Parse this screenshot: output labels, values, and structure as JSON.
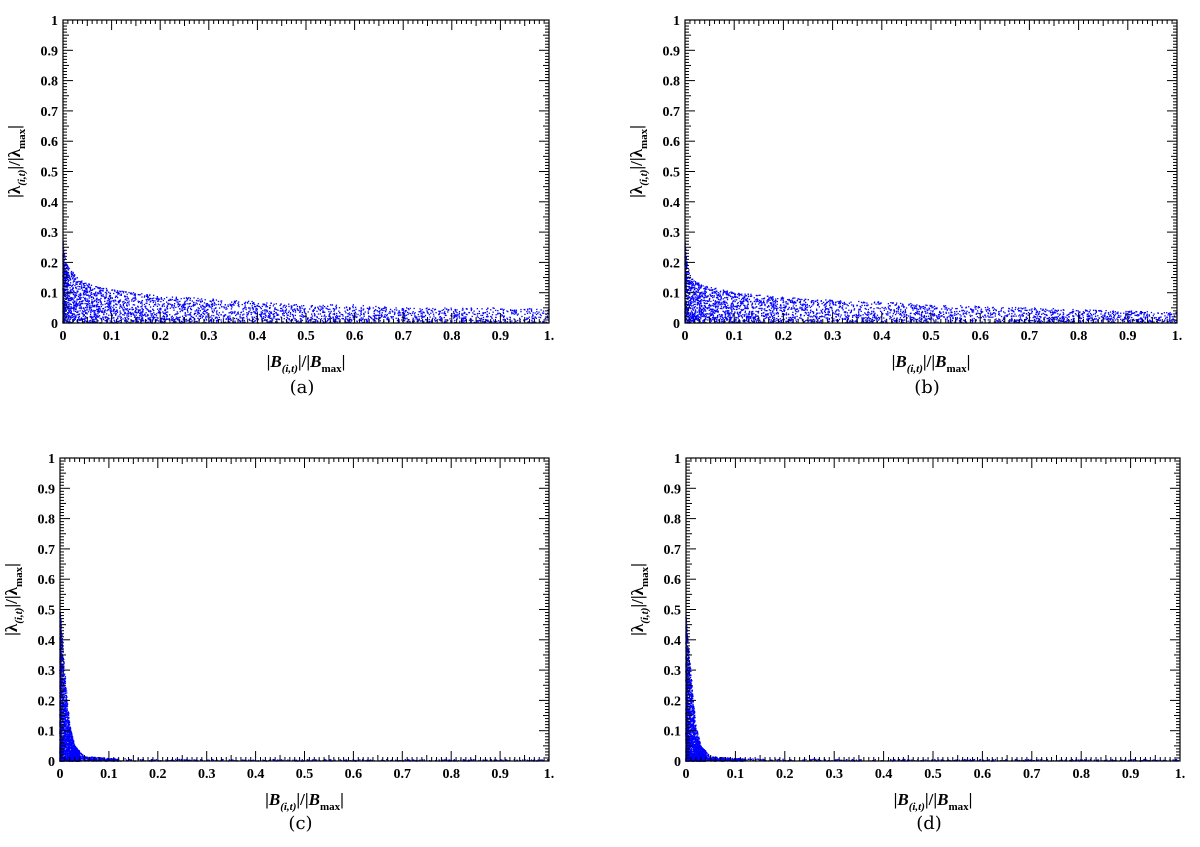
{
  "panel_captions": [
    "(a)",
    "(b)",
    "(c)",
    "(d)"
  ],
  "axis_text": {
    "x_label": "|B(i,t)|/|Bmax|",
    "y_label": "|λ(i,t)|/|λmax|"
  },
  "colors": {
    "points": "#0000ff",
    "axes": "#000000",
    "background": "#ffffff"
  },
  "chart_data": [
    {
      "type": "scatter",
      "caption": "(a)",
      "xlabel": "|B(i,t)|/|Bmax|",
      "ylabel": "|λ(i,t)|/|λmax|",
      "xlim": [
        0,
        1
      ],
      "ylim": [
        0,
        1
      ],
      "xticks": [
        "0",
        "0.1",
        "0.2",
        "0.3",
        "0.4",
        "0.5",
        "0.6",
        "0.7",
        "0.8",
        "0.9",
        "1."
      ],
      "yticks": [
        "0",
        "0.1",
        "0.2",
        "0.3",
        "0.4",
        "0.5",
        "0.6",
        "0.7",
        "0.8",
        "0.9",
        "1"
      ],
      "grid": false,
      "series": [
        {
          "color": "#0000ff",
          "envelope_x": [
            0.0,
            0.005,
            0.01,
            0.02,
            0.03,
            0.05,
            0.1,
            0.2,
            0.3,
            0.4,
            0.5,
            0.6,
            0.7,
            0.8,
            0.9,
            1.0
          ],
          "envelope_y_max": [
            0.27,
            0.21,
            0.19,
            0.17,
            0.15,
            0.13,
            0.11,
            0.09,
            0.08,
            0.07,
            0.06,
            0.06,
            0.05,
            0.05,
            0.05,
            0.045
          ]
        }
      ]
    },
    {
      "type": "scatter",
      "caption": "(b)",
      "xlabel": "|B(i,t)|/|Bmax|",
      "ylabel": "|λ(i,t)|/|λmax|",
      "xlim": [
        0,
        1
      ],
      "ylim": [
        0,
        1
      ],
      "xticks": [
        "0",
        "0.1",
        "0.2",
        "0.3",
        "0.4",
        "0.5",
        "0.6",
        "0.7",
        "0.8",
        "0.9",
        "1."
      ],
      "yticks": [
        "0",
        "0.1",
        "0.2",
        "0.3",
        "0.4",
        "0.5",
        "0.6",
        "0.7",
        "0.8",
        "0.9",
        "1"
      ],
      "grid": false,
      "series": [
        {
          "color": "#0000ff",
          "envelope_x": [
            0.0,
            0.005,
            0.01,
            0.02,
            0.03,
            0.05,
            0.1,
            0.2,
            0.3,
            0.4,
            0.5,
            0.6,
            0.7,
            0.8,
            0.9,
            1.0
          ],
          "envelope_y_max": [
            0.27,
            0.2,
            0.16,
            0.14,
            0.13,
            0.12,
            0.1,
            0.085,
            0.075,
            0.07,
            0.06,
            0.055,
            0.05,
            0.045,
            0.04,
            0.035
          ]
        }
      ]
    },
    {
      "type": "scatter",
      "caption": "(c)",
      "xlabel": "|B(i,t)|/|Bmax|",
      "ylabel": "|λ(i,t)|/|λmax|",
      "xlim": [
        0,
        1
      ],
      "ylim": [
        0,
        1
      ],
      "xticks": [
        "0",
        "0.1",
        "0.2",
        "0.3",
        "0.4",
        "0.5",
        "0.6",
        "0.7",
        "0.8",
        "0.9",
        "1."
      ],
      "yticks": [
        "0",
        "0.1",
        "0.2",
        "0.3",
        "0.4",
        "0.5",
        "0.6",
        "0.7",
        "0.8",
        "0.9",
        "1"
      ],
      "grid": false,
      "series": [
        {
          "color": "#0000ff",
          "envelope_x": [
            0.0,
            0.003,
            0.006,
            0.01,
            0.015,
            0.02,
            0.03,
            0.05,
            0.1,
            0.2,
            0.4,
            0.6,
            0.8,
            1.0
          ],
          "envelope_y_max": [
            0.5,
            0.45,
            0.38,
            0.3,
            0.2,
            0.12,
            0.05,
            0.015,
            0.008,
            0.006,
            0.005,
            0.005,
            0.005,
            0.005
          ]
        }
      ]
    },
    {
      "type": "scatter",
      "caption": "(d)",
      "xlabel": "|B(i,t)|/|Bmax|",
      "ylabel": "|λ(i,t)|/|λmax|",
      "xlim": [
        0,
        1
      ],
      "ylim": [
        0,
        1
      ],
      "xticks": [
        "0",
        "0.1",
        "0.2",
        "0.3",
        "0.4",
        "0.5",
        "0.6",
        "0.7",
        "0.8",
        "0.9",
        "1."
      ],
      "yticks": [
        "0",
        "0.1",
        "0.2",
        "0.3",
        "0.4",
        "0.5",
        "0.6",
        "0.7",
        "0.8",
        "0.9",
        "1"
      ],
      "grid": false,
      "series": [
        {
          "color": "#0000ff",
          "envelope_x": [
            0.0,
            0.003,
            0.006,
            0.01,
            0.015,
            0.02,
            0.03,
            0.05,
            0.1,
            0.2,
            0.4,
            0.6,
            0.8,
            1.0
          ],
          "envelope_y_max": [
            0.48,
            0.42,
            0.36,
            0.3,
            0.2,
            0.12,
            0.05,
            0.015,
            0.008,
            0.006,
            0.005,
            0.005,
            0.005,
            0.005
          ]
        }
      ]
    }
  ]
}
